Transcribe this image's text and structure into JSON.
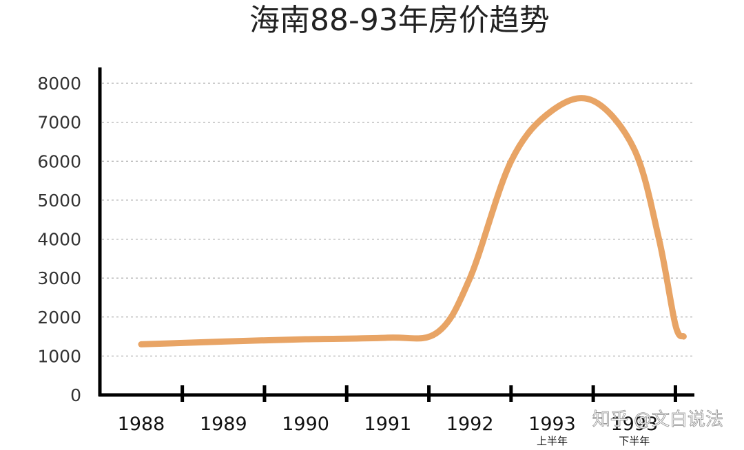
{
  "chart_data": {
    "type": "line",
    "title": "海南88-93年房价趋势",
    "xlabel": "",
    "ylabel": "",
    "ylim": [
      0,
      8000
    ],
    "y_ticks": [
      "0",
      "1000",
      "2000",
      "3000",
      "4000",
      "5000",
      "6000",
      "7000",
      "8000"
    ],
    "x_ticks": [
      {
        "label": "1988",
        "sub": ""
      },
      {
        "label": "1989",
        "sub": ""
      },
      {
        "label": "1990",
        "sub": ""
      },
      {
        "label": "1991",
        "sub": ""
      },
      {
        "label": "1992",
        "sub": ""
      },
      {
        "label": "1993",
        "sub": "上半年"
      },
      {
        "label": "1993",
        "sub": "下半年"
      }
    ],
    "grid": true,
    "legend": "none",
    "series": [
      {
        "color": "#E8A465",
        "points": [
          {
            "x": 1988,
            "y": 1300
          },
          {
            "x": 1989,
            "y": 1370
          },
          {
            "x": 1990,
            "y": 1430
          },
          {
            "x": 1991,
            "y": 1470
          },
          {
            "x": 1991.6,
            "y": 1600
          },
          {
            "x": 1992,
            "y": 3000
          },
          {
            "x": 1992.5,
            "y": 6000
          },
          {
            "x": 1993,
            "y": 7300
          },
          {
            "x": 1993.5,
            "y": 7550
          },
          {
            "x": 1994,
            "y": 6300
          },
          {
            "x": 1994.3,
            "y": 4000
          },
          {
            "x": 1994.5,
            "y": 1800
          },
          {
            "x": 1994.6,
            "y": 1500
          }
        ]
      }
    ]
  },
  "watermark": "知乎 @文白说法"
}
